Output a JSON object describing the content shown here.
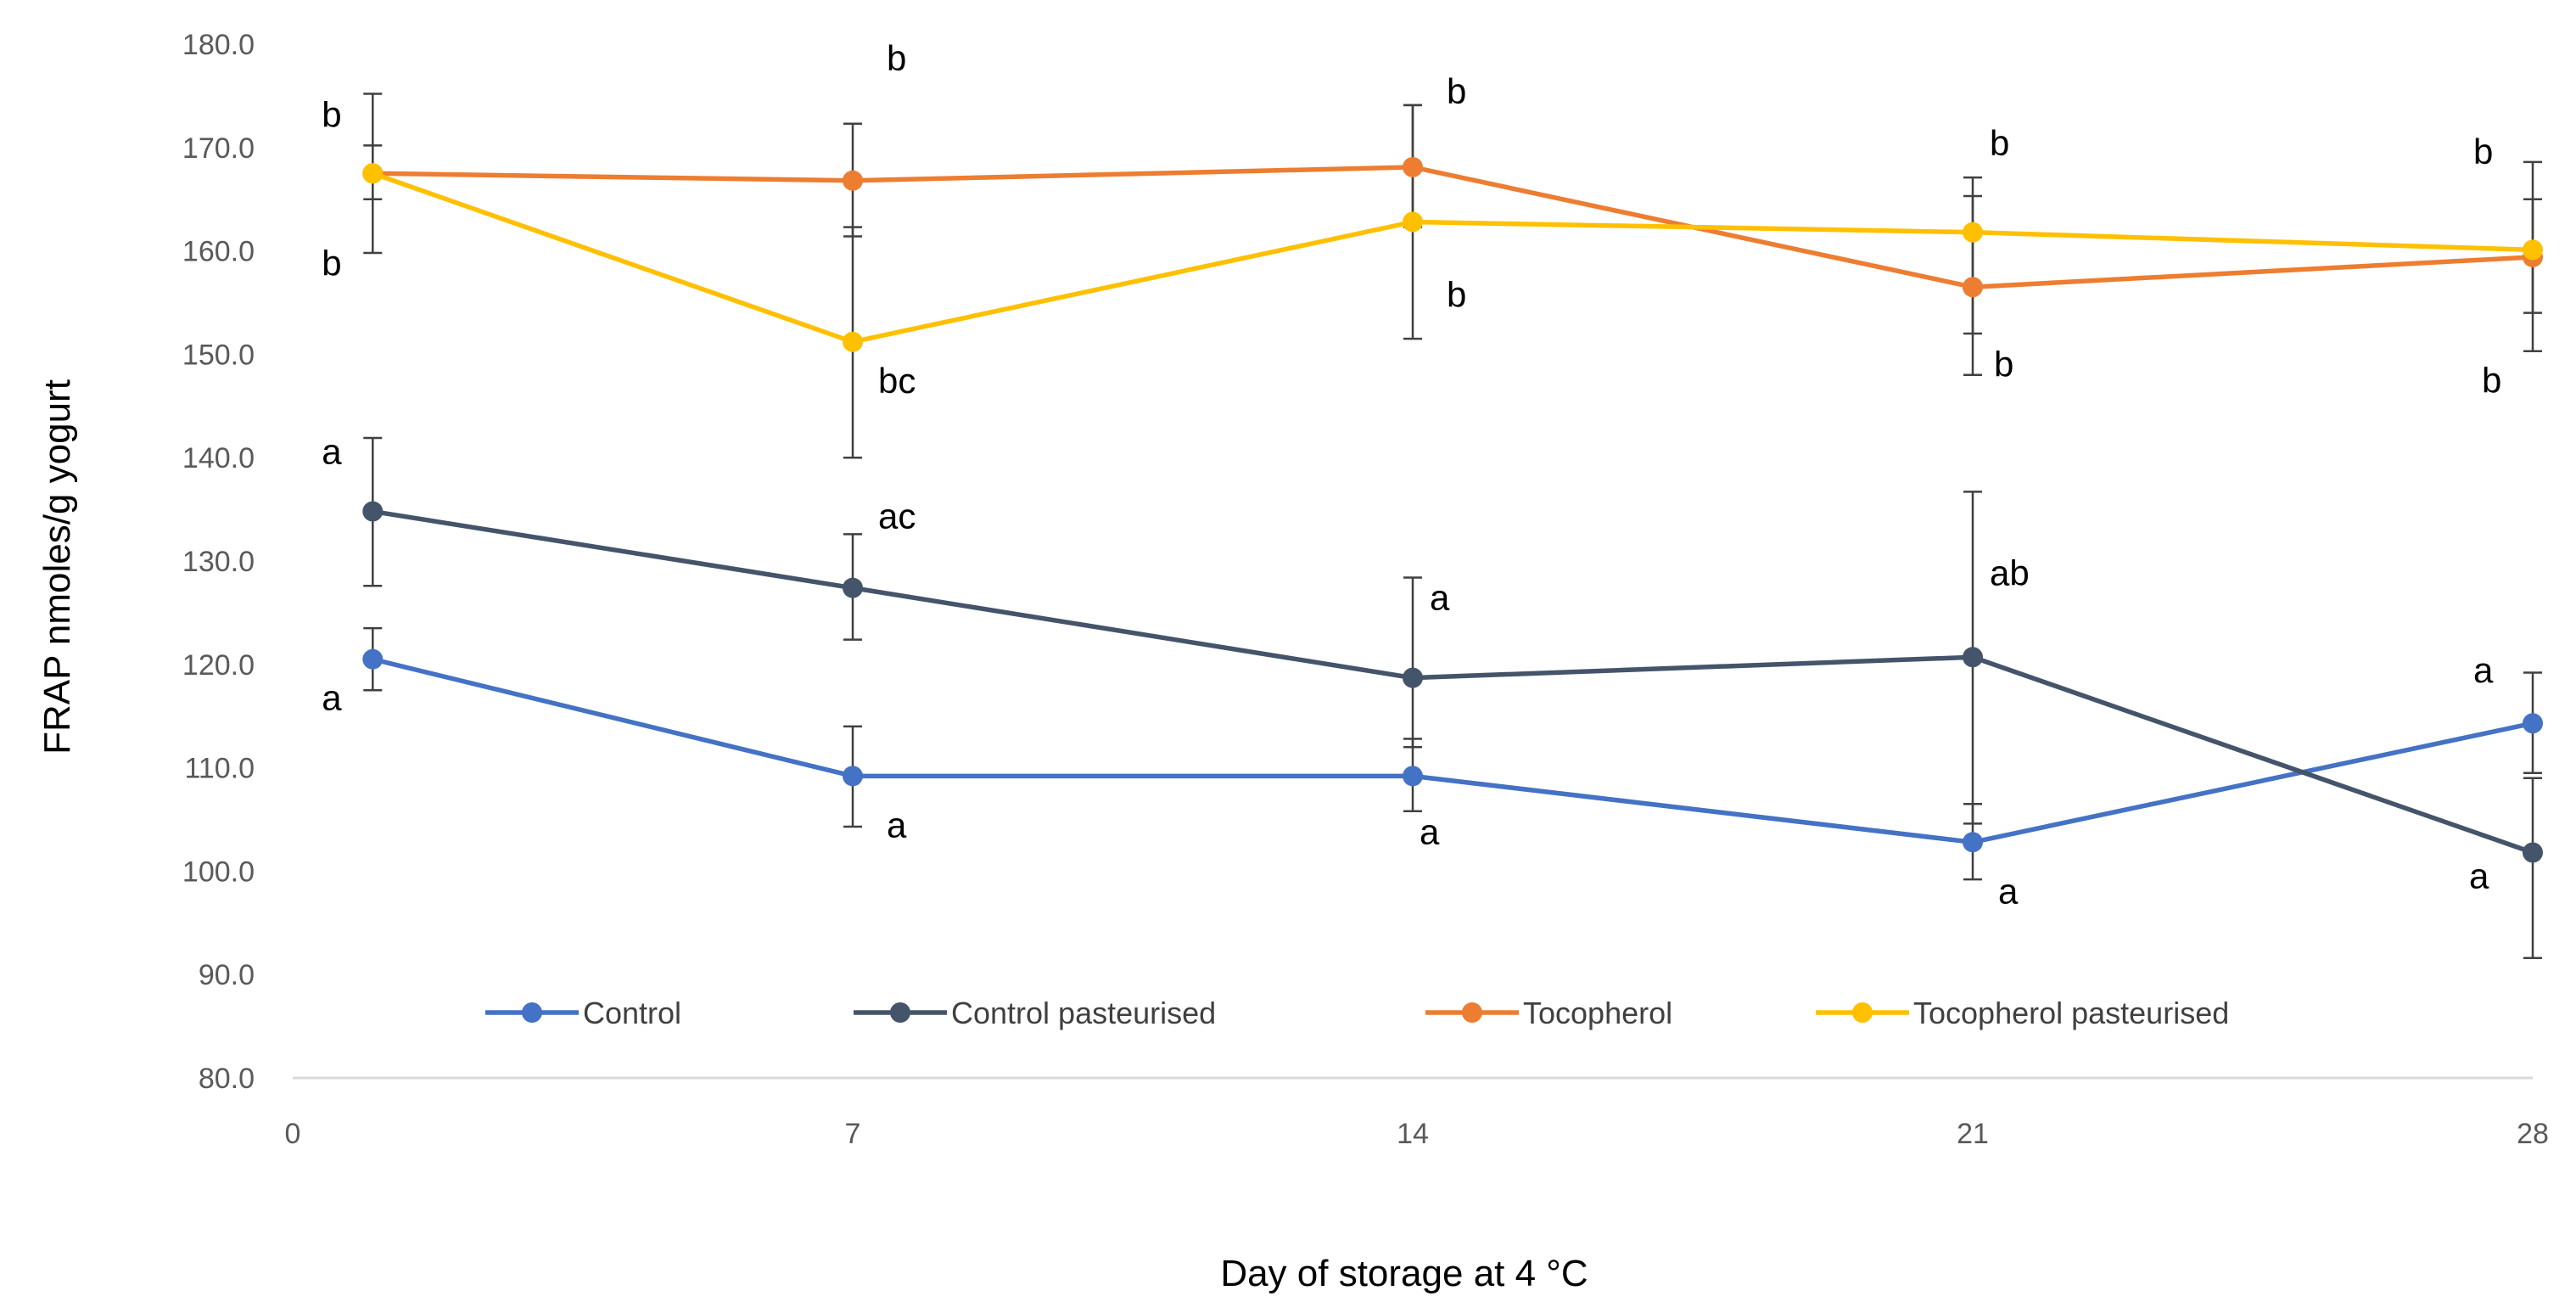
{
  "chart_data": {
    "type": "line",
    "title": "",
    "xlabel": "Day of storage at 4 °C",
    "ylabel": "FRAP nmoles/g yogurt",
    "x_ticks": [
      0,
      7,
      14,
      21,
      28
    ],
    "xlim": [
      0,
      28
    ],
    "y_ticks": [
      "80.0",
      "90.0",
      "100.0",
      "110.0",
      "120.0",
      "130.0",
      "140.0",
      "150.0",
      "160.0",
      "170.0",
      "180.0"
    ],
    "ylim": [
      80,
      180
    ],
    "grid": false,
    "legend_position": "inside-bottom",
    "series": [
      {
        "name": "Control",
        "color": "#4472C4",
        "x": [
          1,
          7,
          14,
          21,
          28
        ],
        "values": [
          120.5,
          109.2,
          109.2,
          102.8,
          114.3
        ],
        "err_low": [
          117.5,
          104.3,
          105.8,
          99.2,
          109.5
        ],
        "err_high": [
          123.5,
          114.0,
          112.8,
          106.5,
          119.2
        ],
        "letters": [
          "a",
          "a",
          "a",
          "a",
          "a"
        ]
      },
      {
        "name": "Control pasteurised",
        "color": "#44546A",
        "x": [
          1,
          7,
          14,
          21,
          28
        ],
        "values": [
          134.8,
          127.4,
          118.7,
          120.7,
          101.8
        ],
        "err_low": [
          127.6,
          122.4,
          112.0,
          104.6,
          91.6
        ],
        "err_high": [
          141.9,
          132.6,
          128.4,
          136.7,
          109.0
        ],
        "letters": [
          "a",
          "ac",
          "a",
          "ab",
          "a"
        ]
      },
      {
        "name": "Tocopherol",
        "color": "#ED7D31",
        "x": [
          1,
          7,
          14,
          21,
          28
        ],
        "values": [
          167.5,
          166.8,
          168.1,
          156.5,
          159.4
        ],
        "err_low": [
          159.8,
          161.4,
          162.3,
          148.0,
          150.3
        ],
        "err_high": [
          175.2,
          172.3,
          174.1,
          165.3,
          168.6
        ],
        "letters": [
          "b",
          "b",
          "b",
          "b",
          "b"
        ]
      },
      {
        "name": "Tocopherol pasteurised",
        "color": "#FFC000",
        "x": [
          1,
          7,
          14,
          21,
          28
        ],
        "values": [
          167.5,
          151.2,
          162.8,
          161.8,
          160.1
        ],
        "err_low": [
          165.0,
          140.0,
          151.5,
          152.0,
          154.0
        ],
        "err_high": [
          170.2,
          162.3,
          174.1,
          167.1,
          165.0
        ],
        "letters": [
          "b",
          "bc",
          "b",
          "b",
          "b"
        ]
      }
    ]
  }
}
